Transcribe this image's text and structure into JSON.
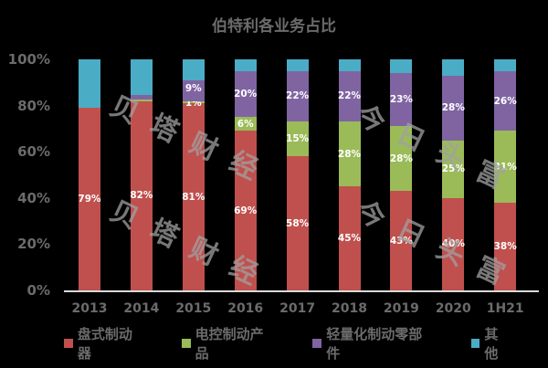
{
  "chart_data": {
    "type": "bar",
    "stacked": true,
    "title": "伯特利各业务占比",
    "xlabel": "",
    "ylabel": "",
    "ylim": [
      0,
      100
    ],
    "y_ticks": [
      "0%",
      "20%",
      "40%",
      "60%",
      "80%",
      "100%"
    ],
    "categories": [
      "2013",
      "2014",
      "2015",
      "2016",
      "2017",
      "2018",
      "2019",
      "2020",
      "1H21"
    ],
    "series": [
      {
        "name": "盘式制动器",
        "color": "#c0504d",
        "values": [
          79,
          82,
          81,
          69,
          58,
          45,
          43,
          40,
          38
        ],
        "labels": [
          "79%",
          "82%",
          "81%",
          "69%",
          "58%",
          "45%",
          "43%",
          "40%",
          "38%"
        ]
      },
      {
        "name": "电控制动产品",
        "color": "#9bbb59",
        "values": [
          0,
          0.5,
          1,
          6,
          15,
          28,
          28,
          25,
          31
        ],
        "labels": [
          "",
          "",
          "1%",
          "6%",
          "15%",
          "28%",
          "28%",
          "25%",
          "31%"
        ]
      },
      {
        "name": "轻量化制动零部件",
        "color": "#8064a2",
        "values": [
          0,
          2,
          9,
          20,
          22,
          22,
          23,
          28,
          26
        ],
        "labels": [
          "",
          "",
          "9%",
          "20%",
          "22%",
          "22%",
          "23%",
          "28%",
          "26%"
        ]
      },
      {
        "name": "其他",
        "color": "#4bacc6",
        "values": [
          21,
          15.5,
          9,
          5,
          5,
          5,
          6,
          7,
          5
        ],
        "labels": [
          "",
          "",
          "",
          "",
          "",
          "",
          "",
          "",
          ""
        ]
      }
    ],
    "legend_position": "bottom",
    "grid": false
  },
  "watermarks": [
    "贝塔财经",
    "今日头富"
  ]
}
